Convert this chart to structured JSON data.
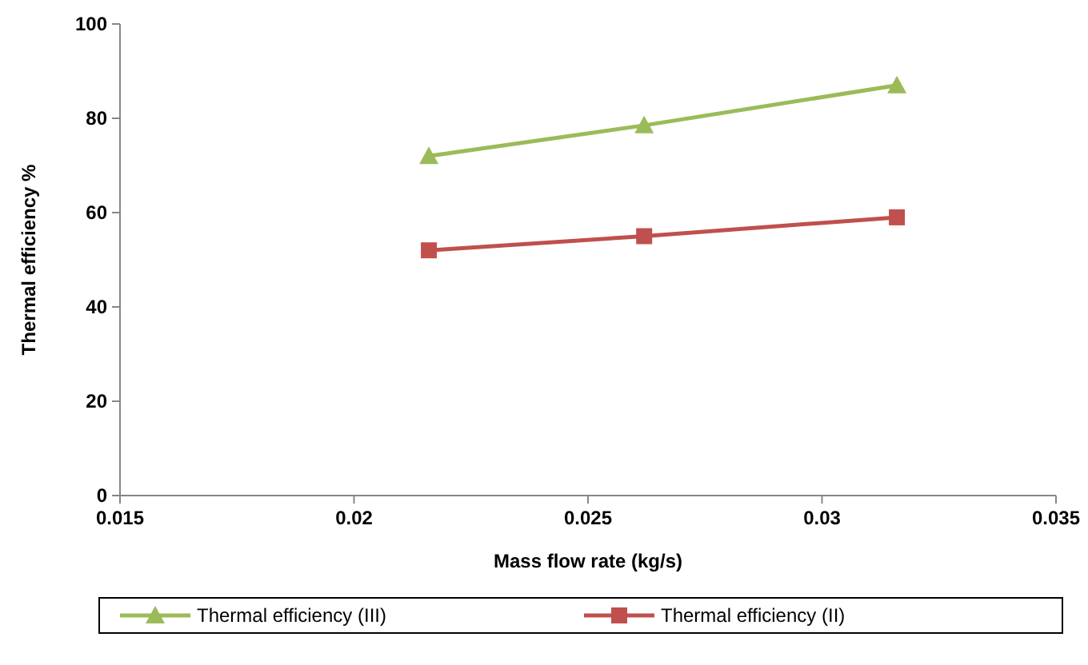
{
  "chart_data": {
    "type": "line",
    "xlabel": "Mass flow rate (kg/s)",
    "ylabel": "Thermal efficiency %",
    "x": [
      0.0216,
      0.0262,
      0.0316
    ],
    "series": [
      {
        "name": "Thermal efficiency (III)",
        "color": "#9bbb59",
        "values": [
          72,
          78.5,
          87
        ],
        "marker": "triangle"
      },
      {
        "name": "Thermal efficiency (II)",
        "color": "#c0504d",
        "values": [
          52,
          55,
          59
        ],
        "marker": "square"
      }
    ],
    "xlim": [
      0.015,
      0.035
    ],
    "xticks": [
      0.015,
      0.02,
      0.025,
      0.03,
      0.035
    ],
    "ylim": [
      0,
      100
    ],
    "yticks": [
      0,
      20,
      40,
      60,
      80,
      100
    ],
    "legend": "bottom",
    "line_style": "solid"
  }
}
